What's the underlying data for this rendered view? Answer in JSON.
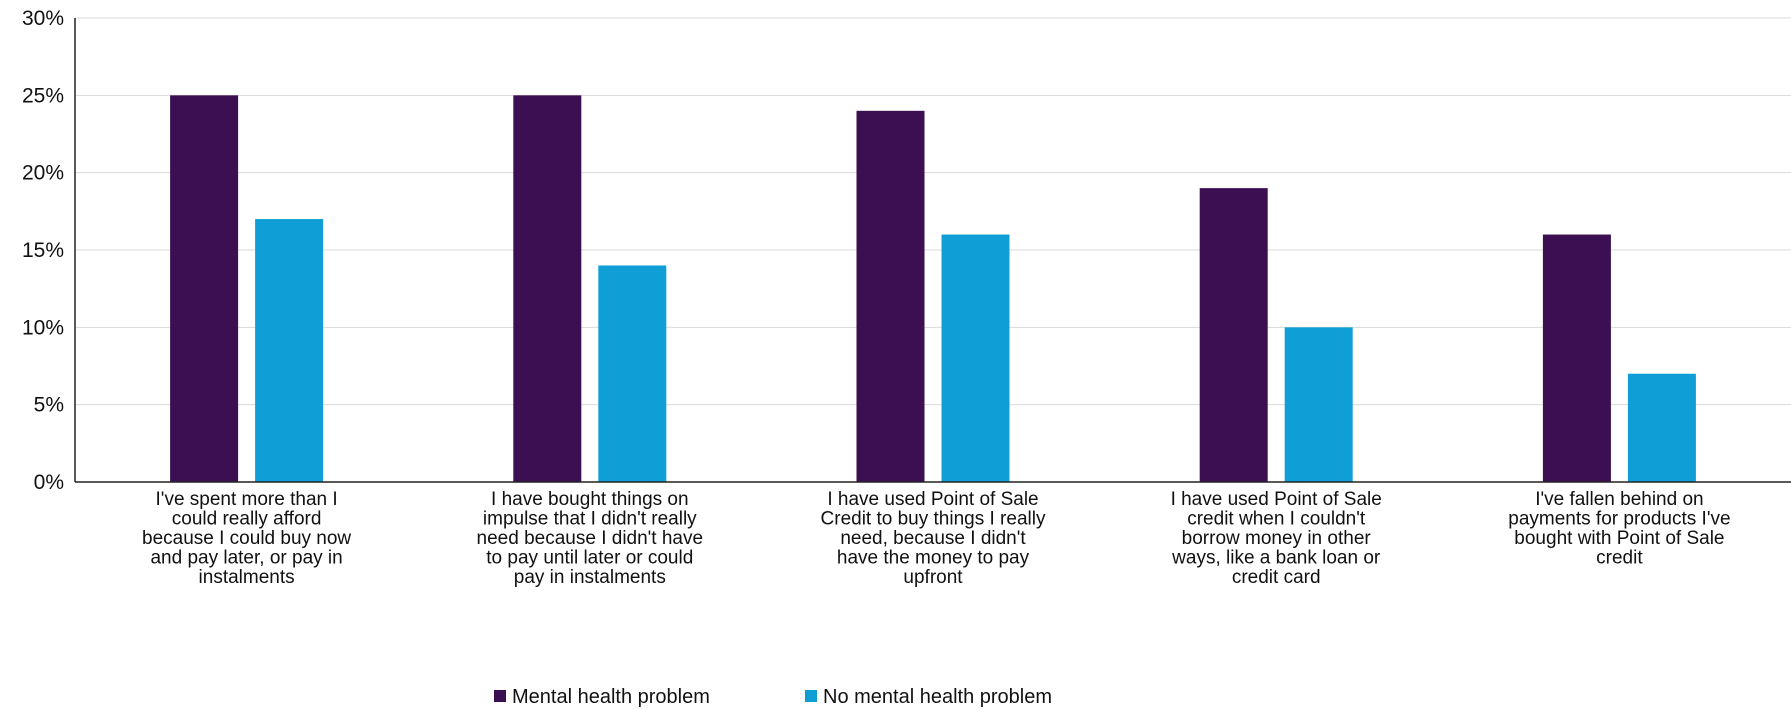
{
  "chart_data": {
    "type": "bar",
    "categories": [
      [
        "I've spent more than I",
        "could really afford",
        "because I could buy now",
        "and pay later, or pay in",
        "instalments"
      ],
      [
        "I have bought things on",
        "impulse that I didn't really",
        "need because I didn't have",
        "to pay until later or could",
        "pay in instalments"
      ],
      [
        "I have used Point of Sale",
        "Credit to buy things I really",
        "need, because I didn't",
        "have the money to pay",
        "upfront"
      ],
      [
        "I have used Point of Sale",
        "credit when I couldn't",
        "borrow money in other",
        "ways, like a bank loan or",
        "credit card"
      ],
      [
        "I've fallen behind on",
        "payments for products I've",
        "bought with Point of Sale",
        "credit"
      ]
    ],
    "series": [
      {
        "name": "Mental health problem",
        "color": "#3b0f52",
        "values": [
          25,
          25,
          24,
          19,
          16
        ]
      },
      {
        "name": "No mental health problem",
        "color": "#0f9fd6",
        "values": [
          17,
          14,
          16,
          10,
          7
        ]
      }
    ],
    "y_ticks": [
      "0%",
      "5%",
      "10%",
      "15%",
      "20%",
      "25%",
      "30%"
    ],
    "ylim": [
      0,
      30
    ],
    "grid": true,
    "legend_position": "bottom-center"
  }
}
